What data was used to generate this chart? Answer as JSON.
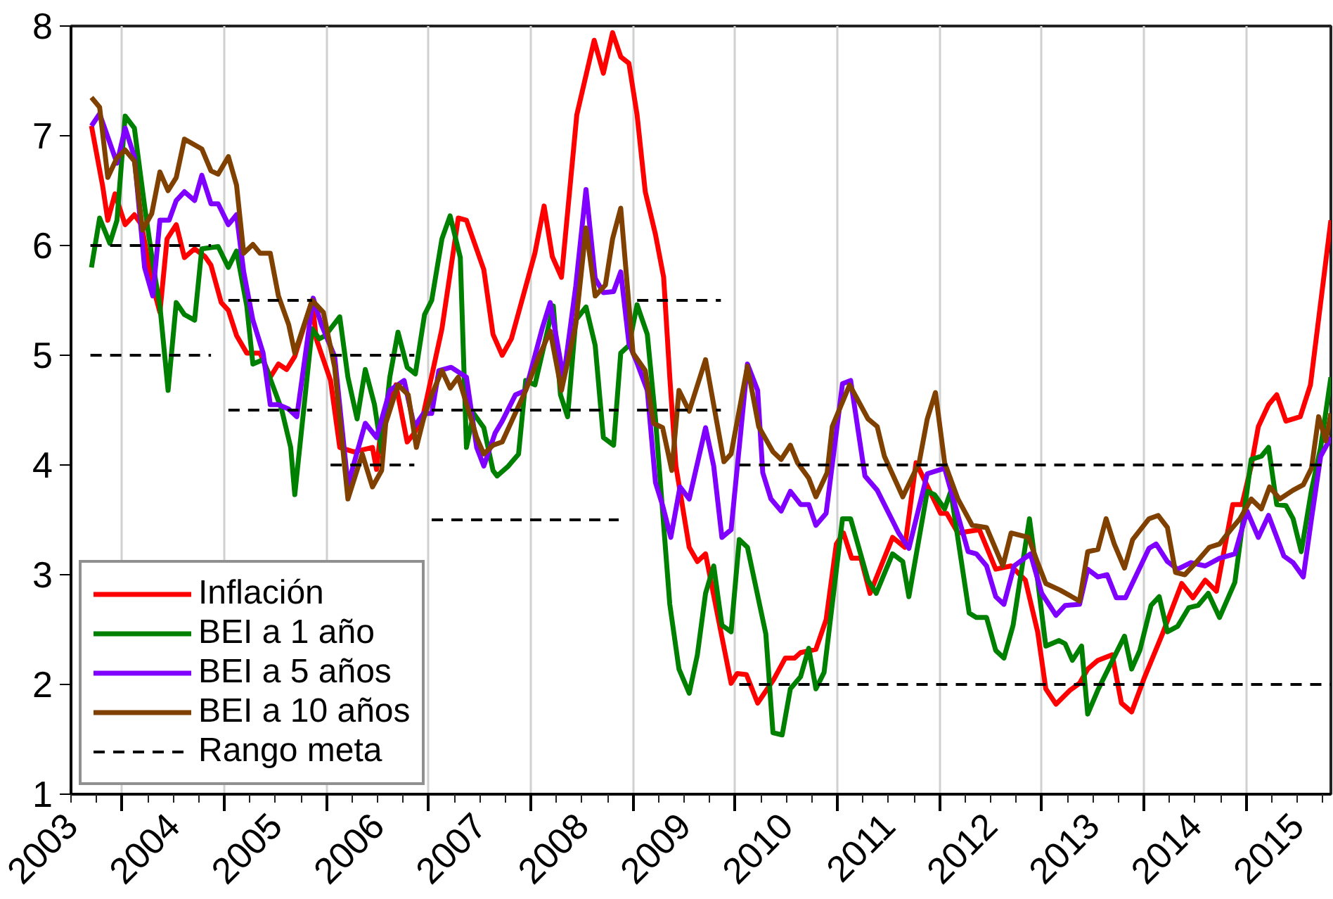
{
  "chart_data": {
    "type": "line",
    "xlim": [
      2003.5,
      2015.83
    ],
    "ylim": [
      1,
      8
    ],
    "yticks": [
      1,
      2,
      3,
      4,
      5,
      6,
      7,
      8
    ],
    "xticks": [
      {
        "value": 2004,
        "label": null
      },
      {
        "value": 2005,
        "label": null
      },
      {
        "value": 2006,
        "label": null
      },
      {
        "value": 2007,
        "label": null
      },
      {
        "value": 2008,
        "label": null
      },
      {
        "value": 2009,
        "label": null
      },
      {
        "value": 2010,
        "label": null
      },
      {
        "value": 2011,
        "label": null
      },
      {
        "value": 2012,
        "label": null
      },
      {
        "value": 2013,
        "label": null
      },
      {
        "value": 2014,
        "label": null
      },
      {
        "value": 2015,
        "label": null
      },
      {
        "value": 2003.5,
        "label": "2003"
      },
      {
        "value": 2004.5,
        "label": "2004"
      },
      {
        "value": 2005.5,
        "label": "2005"
      },
      {
        "value": 2006.5,
        "label": "2006"
      },
      {
        "value": 2007.5,
        "label": "2007"
      },
      {
        "value": 2008.5,
        "label": "2008"
      },
      {
        "value": 2009.5,
        "label": "2009"
      },
      {
        "value": 2010.5,
        "label": "2010"
      },
      {
        "value": 2011.5,
        "label": "2011"
      },
      {
        "value": 2012.5,
        "label": "2012"
      },
      {
        "value": 2013.5,
        "label": "2013"
      },
      {
        "value": 2014.5,
        "label": "2014"
      },
      {
        "value": 2015.5,
        "label": "2015"
      }
    ],
    "grid": "x",
    "legend": "bottom left",
    "series": [
      {
        "name": "Inflación",
        "color": "#ff0000",
        "x": [
          2003.7,
          2003.81,
          2003.86,
          2003.93,
          2004.03,
          2004.12,
          2004.19,
          2004.29,
          2004.37,
          2004.44,
          2004.53,
          2004.61,
          2004.71,
          2004.81,
          2004.87,
          2004.97,
          2005.04,
          2005.12,
          2005.22,
          2005.35,
          2005.45,
          2005.53,
          2005.61,
          2005.69,
          2005.86,
          2005.9,
          2006.04,
          2006.13,
          2006.27,
          2006.45,
          2006.49,
          2006.54,
          2006.68,
          2006.79,
          2006.86,
          2006.95,
          2007.13,
          2007.29,
          2007.37,
          2007.54,
          2007.63,
          2007.72,
          2007.81,
          2008.04,
          2008.13,
          2008.21,
          2008.3,
          2008.45,
          2008.62,
          2008.71,
          2008.8,
          2008.88,
          2008.96,
          2009.04,
          2009.12,
          2009.22,
          2009.3,
          2009.36,
          2009.42,
          2009.45,
          2009.55,
          2009.63,
          2009.71,
          2009.86,
          2009.96,
          2010.02,
          2010.11,
          2010.22,
          2010.38,
          2010.49,
          2010.58,
          2010.64,
          2010.79,
          2010.89,
          2010.99,
          2011.06,
          2011.14,
          2011.23,
          2011.32,
          2011.54,
          2011.66,
          2011.77,
          2012.01,
          2012.07,
          2012.18,
          2012.39,
          2012.55,
          2012.7,
          2012.84,
          2012.96,
          2013.04,
          2013.14,
          2013.28,
          2013.37,
          2013.45,
          2013.55,
          2013.69,
          2013.78,
          2013.88,
          2014.0,
          2014.19,
          2014.37,
          2014.48,
          2014.6,
          2014.71,
          2014.87,
          2014.96,
          2015.05,
          2015.12,
          2015.22,
          2015.3,
          2015.39,
          2015.53,
          2015.63,
          2015.83
        ],
        "values": [
          7.09,
          6.54,
          6.23,
          6.47,
          6.19,
          6.28,
          6.19,
          5.67,
          5.39,
          6.06,
          6.19,
          5.89,
          5.97,
          5.9,
          5.82,
          5.48,
          5.41,
          5.18,
          5.02,
          5.02,
          4.8,
          4.92,
          4.87,
          4.99,
          5.5,
          5.15,
          4.77,
          4.16,
          4.12,
          4.16,
          3.96,
          4.38,
          4.73,
          4.21,
          4.29,
          4.47,
          5.24,
          6.25,
          6.23,
          5.78,
          5.19,
          5.0,
          5.15,
          5.93,
          6.36,
          5.9,
          5.71,
          7.19,
          7.87,
          7.57,
          7.94,
          7.72,
          7.66,
          7.19,
          6.49,
          6.1,
          5.71,
          4.8,
          3.99,
          3.82,
          3.25,
          3.12,
          3.19,
          2.48,
          2.01,
          2.1,
          2.09,
          1.83,
          2.05,
          2.24,
          2.24,
          2.29,
          2.32,
          2.59,
          3.28,
          3.38,
          3.15,
          3.15,
          2.83,
          3.34,
          3.25,
          4.02,
          3.56,
          3.56,
          3.38,
          3.41,
          3.05,
          3.08,
          2.95,
          2.48,
          1.96,
          1.82,
          1.95,
          2.01,
          2.14,
          2.22,
          2.27,
          1.83,
          1.75,
          2.05,
          2.48,
          2.92,
          2.79,
          2.95,
          2.85,
          3.64,
          3.64,
          3.99,
          4.35,
          4.55,
          4.64,
          4.4,
          4.44,
          4.73,
          6.23
        ]
      },
      {
        "name": "BEI a 1 año",
        "color": "#008000",
        "x": [
          2003.7,
          2003.78,
          2003.88,
          2003.95,
          2004.03,
          2004.12,
          2004.22,
          2004.3,
          2004.37,
          2004.45,
          2004.53,
          2004.61,
          2004.71,
          2004.78,
          2004.94,
          2005.04,
          2005.12,
          2005.22,
          2005.28,
          2005.38,
          2005.56,
          2005.65,
          2005.69,
          2005.86,
          2005.93,
          2005.99,
          2006.13,
          2006.21,
          2006.3,
          2006.38,
          2006.47,
          2006.54,
          2006.62,
          2006.7,
          2006.79,
          2006.87,
          2006.96,
          2007.03,
          2007.13,
          2007.21,
          2007.31,
          2007.37,
          2007.44,
          2007.54,
          2007.63,
          2007.67,
          2007.78,
          2007.88,
          2007.95,
          2008.04,
          2008.22,
          2008.29,
          2008.36,
          2008.44,
          2008.54,
          2008.63,
          2008.71,
          2008.81,
          2008.88,
          2008.96,
          2009.04,
          2009.14,
          2009.22,
          2009.36,
          2009.45,
          2009.55,
          2009.63,
          2009.71,
          2009.79,
          2009.87,
          2009.96,
          2010.04,
          2010.12,
          2010.3,
          2010.37,
          2010.46,
          2010.54,
          2010.64,
          2010.72,
          2010.79,
          2010.87,
          2011.05,
          2011.13,
          2011.3,
          2011.38,
          2011.54,
          2011.64,
          2011.7,
          2011.88,
          2011.95,
          2012.05,
          2012.11,
          2012.29,
          2012.36,
          2012.46,
          2012.55,
          2012.63,
          2012.72,
          2012.88,
          2012.96,
          2013.04,
          2013.17,
          2013.23,
          2013.3,
          2013.39,
          2013.45,
          2013.55,
          2013.81,
          2013.88,
          2013.96,
          2014.07,
          2014.15,
          2014.23,
          2014.33,
          2014.44,
          2014.53,
          2014.63,
          2014.74,
          2014.89,
          2015.05,
          2015.15,
          2015.22,
          2015.3,
          2015.39,
          2015.46,
          2015.54,
          2015.64,
          2015.73,
          2015.83
        ],
        "values": [
          5.8,
          6.25,
          6.02,
          6.23,
          7.18,
          7.07,
          6.36,
          5.84,
          5.45,
          4.68,
          5.48,
          5.37,
          5.32,
          5.97,
          5.99,
          5.8,
          5.95,
          5.45,
          4.92,
          4.96,
          4.51,
          4.16,
          3.73,
          5.24,
          5.15,
          5.18,
          5.35,
          4.8,
          4.42,
          4.87,
          4.55,
          4.12,
          4.8,
          5.21,
          4.89,
          4.83,
          5.37,
          5.5,
          6.06,
          6.27,
          5.89,
          4.16,
          4.47,
          4.34,
          3.95,
          3.9,
          3.99,
          4.1,
          4.77,
          4.73,
          5.45,
          4.64,
          4.44,
          5.32,
          5.44,
          5.09,
          4.25,
          4.18,
          5.02,
          5.09,
          5.46,
          5.19,
          4.42,
          2.73,
          2.14,
          1.92,
          2.27,
          2.83,
          3.08,
          2.54,
          2.48,
          3.32,
          3.25,
          2.46,
          1.56,
          1.54,
          1.96,
          2.07,
          2.33,
          1.96,
          2.11,
          3.51,
          3.51,
          2.95,
          2.83,
          3.19,
          3.12,
          2.8,
          3.76,
          3.73,
          3.6,
          3.76,
          2.65,
          2.61,
          2.61,
          2.31,
          2.24,
          2.54,
          3.51,
          2.95,
          2.35,
          2.4,
          2.37,
          2.22,
          2.35,
          1.73,
          1.95,
          2.44,
          2.14,
          2.31,
          2.72,
          2.8,
          2.48,
          2.53,
          2.7,
          2.72,
          2.83,
          2.61,
          2.93,
          4.05,
          4.08,
          4.16,
          3.64,
          3.63,
          3.51,
          3.21,
          3.77,
          4.16,
          4.8
        ]
      },
      {
        "name": "BEI a 5 años",
        "color": "#8000ff",
        "x": [
          2003.7,
          2003.78,
          2003.95,
          2004.03,
          2004.12,
          2004.22,
          2004.3,
          2004.37,
          2004.46,
          2004.53,
          2004.61,
          2004.71,
          2004.78,
          2004.87,
          2004.94,
          2005.04,
          2005.12,
          2005.19,
          2005.28,
          2005.38,
          2005.45,
          2005.53,
          2005.63,
          2005.71,
          2005.87,
          2005.95,
          2006.08,
          2006.21,
          2006.38,
          2006.49,
          2006.62,
          2006.76,
          2006.86,
          2006.95,
          2007.03,
          2007.1,
          2007.22,
          2007.37,
          2007.47,
          2007.54,
          2007.65,
          2007.72,
          2007.85,
          2007.95,
          2008.11,
          2008.19,
          2008.32,
          2008.44,
          2008.54,
          2008.63,
          2008.71,
          2008.81,
          2008.88,
          2008.96,
          2009.04,
          2009.14,
          2009.22,
          2009.29,
          2009.37,
          2009.46,
          2009.55,
          2009.71,
          2009.79,
          2009.87,
          2009.96,
          2010.12,
          2010.22,
          2010.27,
          2010.35,
          2010.45,
          2010.54,
          2010.64,
          2010.72,
          2010.79,
          2010.89,
          2011.05,
          2011.13,
          2011.27,
          2011.39,
          2011.6,
          2011.7,
          2011.88,
          2012.05,
          2012.28,
          2012.36,
          2012.46,
          2012.55,
          2012.63,
          2012.73,
          2012.89,
          2013.0,
          2013.14,
          2013.23,
          2013.37,
          2013.45,
          2013.55,
          2013.64,
          2013.73,
          2013.82,
          2014.05,
          2014.12,
          2014.23,
          2014.33,
          2014.46,
          2014.6,
          2014.74,
          2014.89,
          2015.01,
          2015.12,
          2015.22,
          2015.37,
          2015.46,
          2015.56,
          2015.64,
          2015.73,
          2015.83
        ],
        "values": [
          7.09,
          7.2,
          6.75,
          7.07,
          6.81,
          5.8,
          5.54,
          6.23,
          6.23,
          6.41,
          6.49,
          6.41,
          6.64,
          6.38,
          6.38,
          6.19,
          6.28,
          5.76,
          5.32,
          5.02,
          4.55,
          4.55,
          4.51,
          4.44,
          5.52,
          5.28,
          4.99,
          3.82,
          4.38,
          4.25,
          4.68,
          4.77,
          4.35,
          4.47,
          4.47,
          4.86,
          4.89,
          4.8,
          4.16,
          3.99,
          4.29,
          4.4,
          4.64,
          4.68,
          5.24,
          5.48,
          4.79,
          5.63,
          6.51,
          5.7,
          5.57,
          5.58,
          5.76,
          5.11,
          4.93,
          4.68,
          3.84,
          3.63,
          3.34,
          3.8,
          3.69,
          4.34,
          3.99,
          3.34,
          3.41,
          4.92,
          4.68,
          3.93,
          3.69,
          3.58,
          3.76,
          3.64,
          3.64,
          3.45,
          3.56,
          4.74,
          4.77,
          3.9,
          3.77,
          3.38,
          3.24,
          3.92,
          3.97,
          3.21,
          3.19,
          3.08,
          2.8,
          2.73,
          3.08,
          3.19,
          2.83,
          2.63,
          2.72,
          2.73,
          3.05,
          2.98,
          3.0,
          2.79,
          2.79,
          3.24,
          3.28,
          3.12,
          3.05,
          3.11,
          3.08,
          3.15,
          3.19,
          3.58,
          3.34,
          3.54,
          3.17,
          3.11,
          2.98,
          3.51,
          4.08,
          4.25
        ]
      },
      {
        "name": "BEI a 10 años",
        "color": "#804000",
        "x": [
          2003.7,
          2003.78,
          2003.86,
          2003.95,
          2004.03,
          2004.12,
          2004.2,
          2004.29,
          2004.37,
          2004.45,
          2004.53,
          2004.61,
          2004.78,
          2004.87,
          2004.94,
          2005.04,
          2005.12,
          2005.19,
          2005.28,
          2005.35,
          2005.45,
          2005.53,
          2005.63,
          2005.69,
          2005.86,
          2005.97,
          2006.08,
          2006.21,
          2006.35,
          2006.45,
          2006.54,
          2006.58,
          2006.7,
          2006.8,
          2006.88,
          2006.95,
          2007.03,
          2007.13,
          2007.21,
          2007.29,
          2007.4,
          2007.47,
          2007.54,
          2007.63,
          2007.72,
          2007.95,
          2008.08,
          2008.19,
          2008.3,
          2008.44,
          2008.54,
          2008.63,
          2008.73,
          2008.8,
          2008.88,
          2009.0,
          2009.12,
          2009.2,
          2009.29,
          2009.38,
          2009.45,
          2009.55,
          2009.71,
          2009.89,
          2009.96,
          2010.12,
          2010.23,
          2010.37,
          2010.45,
          2010.54,
          2010.61,
          2010.72,
          2010.79,
          2010.9,
          2010.95,
          2011.12,
          2011.3,
          2011.39,
          2011.46,
          2011.64,
          2011.8,
          2011.88,
          2011.96,
          2012.05,
          2012.18,
          2012.32,
          2012.46,
          2012.62,
          2012.7,
          2012.87,
          2012.96,
          2013.04,
          2013.18,
          2013.37,
          2013.45,
          2013.55,
          2013.63,
          2013.71,
          2013.81,
          2013.89,
          2014.05,
          2014.14,
          2014.23,
          2014.31,
          2014.4,
          2014.51,
          2014.64,
          2014.74,
          2014.85,
          2014.94,
          2015.05,
          2015.15,
          2015.23,
          2015.33,
          2015.46,
          2015.56,
          2015.64,
          2015.71,
          2015.78,
          2015.83
        ],
        "values": [
          7.35,
          7.26,
          6.62,
          6.8,
          6.87,
          6.77,
          6.14,
          6.29,
          6.67,
          6.5,
          6.62,
          6.97,
          6.88,
          6.68,
          6.65,
          6.81,
          6.55,
          5.93,
          6.01,
          5.93,
          5.93,
          5.54,
          5.28,
          5.02,
          5.5,
          5.39,
          4.89,
          3.69,
          4.1,
          3.8,
          3.95,
          4.38,
          4.73,
          4.64,
          4.16,
          4.42,
          4.64,
          4.86,
          4.7,
          4.8,
          4.47,
          4.25,
          4.1,
          4.18,
          4.21,
          4.68,
          4.99,
          5.22,
          4.68,
          5.28,
          6.16,
          5.54,
          5.64,
          6.06,
          6.34,
          5.02,
          4.86,
          4.38,
          4.34,
          3.95,
          4.68,
          4.49,
          4.96,
          4.03,
          4.1,
          4.9,
          4.35,
          4.12,
          4.05,
          4.18,
          4.02,
          3.88,
          3.71,
          3.93,
          4.35,
          4.73,
          4.42,
          4.35,
          4.08,
          3.71,
          4.02,
          4.42,
          4.66,
          4.02,
          3.69,
          3.45,
          3.43,
          3.08,
          3.38,
          3.34,
          3.11,
          2.92,
          2.86,
          2.76,
          3.21,
          3.23,
          3.51,
          3.28,
          3.06,
          3.32,
          3.51,
          3.54,
          3.43,
          3.02,
          3.0,
          3.11,
          3.25,
          3.28,
          3.41,
          3.51,
          3.69,
          3.6,
          3.8,
          3.69,
          3.77,
          3.82,
          3.97,
          4.44,
          4.22,
          4.47
        ]
      },
      {
        "name": "Rango meta",
        "color": "#000000",
        "line_style": "dashed",
        "x": [
          2003.69,
          2004.87
        ],
        "values": [
          6,
          6
        ]
      },
      {
        "color": "#000000",
        "line_style": "dashed",
        "x": [
          2003.69,
          2004.87
        ],
        "values": [
          5,
          5
        ]
      },
      {
        "color": "#000000",
        "line_style": "dashed",
        "x": [
          2005.04,
          2005.86
        ],
        "values": [
          5.5,
          5.5
        ]
      },
      {
        "color": "#000000",
        "line_style": "dashed",
        "x": [
          2005.04,
          2005.86
        ],
        "values": [
          4.5,
          4.5
        ]
      },
      {
        "color": "#000000",
        "line_style": "dashed",
        "x": [
          2006.04,
          2006.86
        ],
        "values": [
          5,
          5
        ]
      },
      {
        "color": "#000000",
        "line_style": "dashed",
        "x": [
          2006.04,
          2006.86
        ],
        "values": [
          4,
          4
        ]
      },
      {
        "color": "#000000",
        "line_style": "dashed",
        "x": [
          2007.03,
          2008.86
        ],
        "values": [
          4.5,
          4.5
        ]
      },
      {
        "color": "#000000",
        "line_style": "dashed",
        "x": [
          2007.03,
          2008.86
        ],
        "values": [
          3.5,
          3.5
        ]
      },
      {
        "color": "#000000",
        "line_style": "dashed",
        "x": [
          2009.04,
          2009.86
        ],
        "values": [
          5.5,
          5.5
        ]
      },
      {
        "color": "#000000",
        "line_style": "dashed",
        "x": [
          2009.04,
          2009.86
        ],
        "values": [
          4.5,
          4.5
        ]
      },
      {
        "color": "#000000",
        "line_style": "dashed",
        "x": [
          2010.04,
          2015.83
        ],
        "values": [
          4,
          4
        ]
      },
      {
        "color": "#000000",
        "line_style": "dashed",
        "x": [
          2010.04,
          2015.83
        ],
        "values": [
          2,
          2
        ]
      }
    ]
  }
}
